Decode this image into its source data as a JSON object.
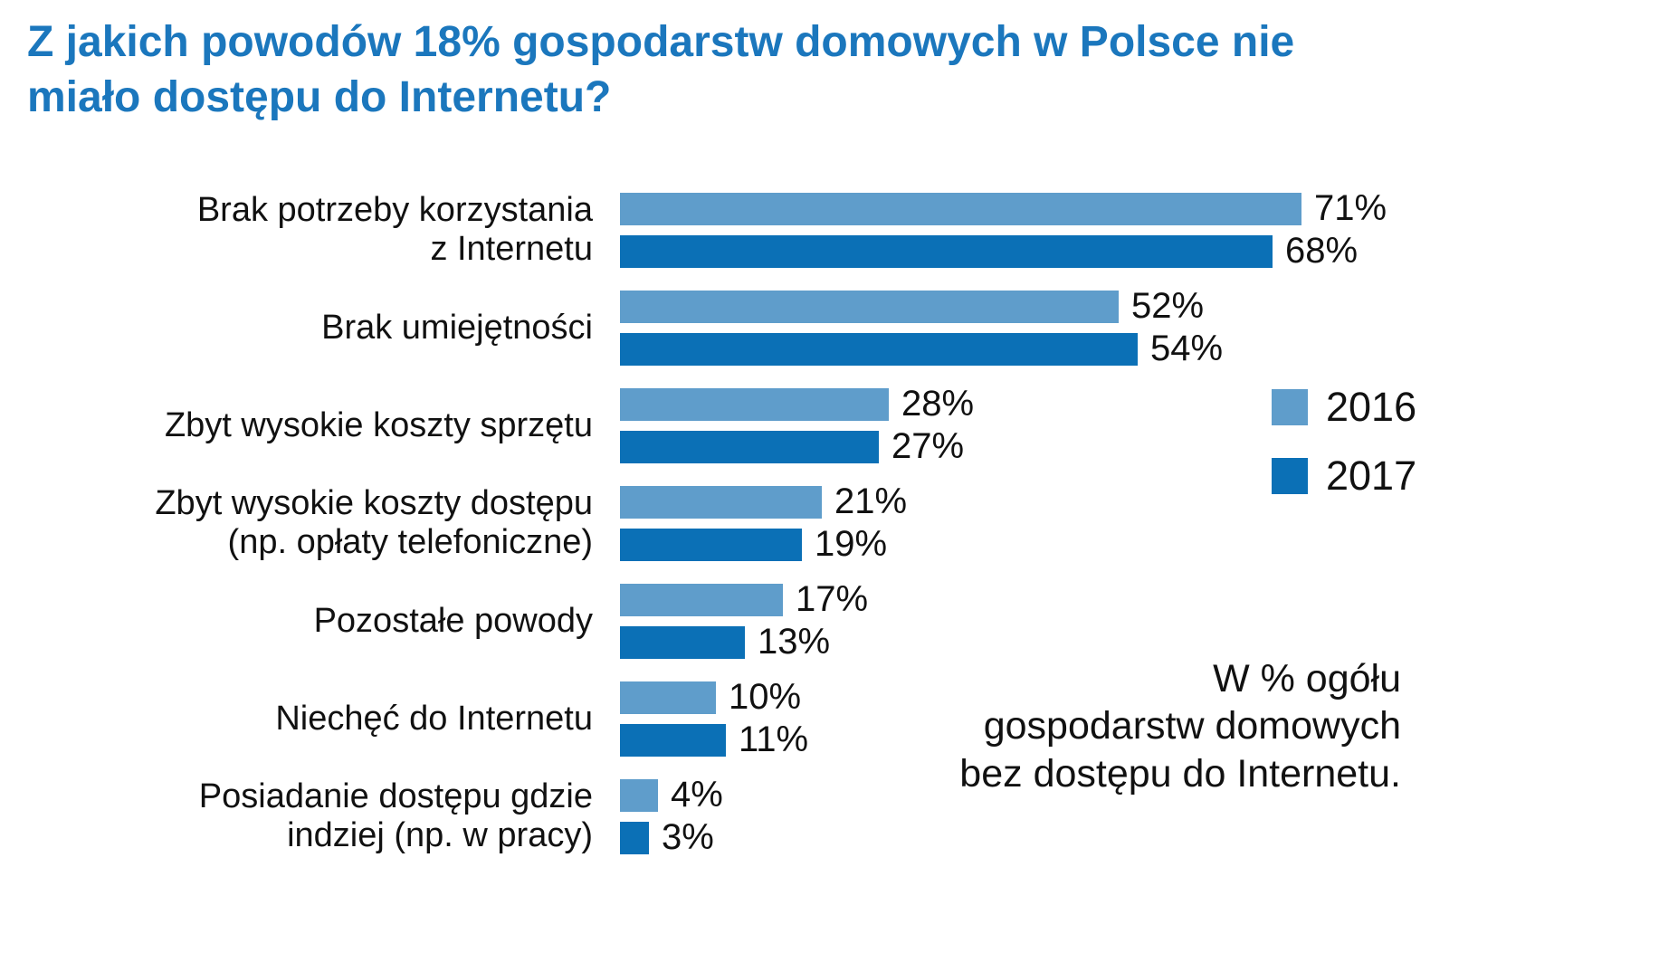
{
  "title": "Z jakich powodów 18% gospodarstw domowych w Polsce nie\nmiało dostępu do Internetu?",
  "colors": {
    "title": "#1b77bd",
    "series_2016": "#5f9dcb",
    "series_2017": "#0b70b6",
    "text": "#111111"
  },
  "chart_data": {
    "type": "bar",
    "orientation": "horizontal",
    "title": "Z jakich powodów 18% gospodarstw domowych w Polsce nie miało dostępu do Internetu?",
    "categories": [
      "Brak potrzeby korzystania\nz Internetu",
      "Brak umiejętności",
      "Zbyt wysokie koszty sprzętu",
      "Zbyt wysokie koszty dostępu\n(np. opłaty telefoniczne)",
      "Pozostałe powody",
      "Niechęć do Internetu",
      "Posiadanie dostępu gdzie\nindziej (np. w pracy)"
    ],
    "series": [
      {
        "name": "2016",
        "color": "#5f9dcb",
        "values": [
          71,
          52,
          28,
          21,
          17,
          10,
          4
        ]
      },
      {
        "name": "2017",
        "color": "#0b70b6",
        "values": [
          68,
          54,
          27,
          19,
          13,
          11,
          3
        ]
      }
    ],
    "value_suffix": "%",
    "xlim": [
      0,
      100
    ],
    "grid": false,
    "legend_position": "right",
    "note": "W % ogółu\ngospodarstw domowych\nbez dostępu do Internetu."
  }
}
